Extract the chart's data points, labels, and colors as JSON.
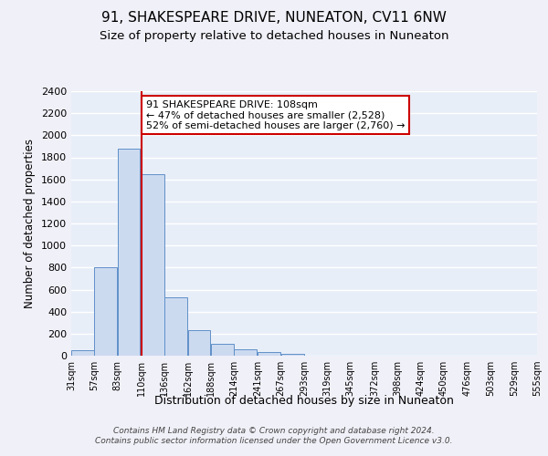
{
  "title": "91, SHAKESPEARE DRIVE, NUNEATON, CV11 6NW",
  "subtitle": "Size of property relative to detached houses in Nuneaton",
  "xlabel": "Distribution of detached houses by size in Nuneaton",
  "ylabel": "Number of detached properties",
  "bar_color": "#ccdaf0",
  "bar_edge_color": "#6090c8",
  "background_color": "#e8eef8",
  "grid_color": "#ffffff",
  "vline_x": 110,
  "vline_color": "#cc0000",
  "bins": [
    31,
    57,
    83,
    110,
    136,
    162,
    188,
    214,
    241,
    267,
    293,
    319,
    345,
    372,
    398,
    424,
    450,
    476,
    503,
    529,
    555
  ],
  "bin_labels": [
    "31sqm",
    "57sqm",
    "83sqm",
    "110sqm",
    "136sqm",
    "162sqm",
    "188sqm",
    "214sqm",
    "241sqm",
    "267sqm",
    "293sqm",
    "319sqm",
    "345sqm",
    "372sqm",
    "398sqm",
    "424sqm",
    "450sqm",
    "476sqm",
    "503sqm",
    "529sqm",
    "555sqm"
  ],
  "bar_heights": [
    50,
    800,
    1880,
    1650,
    530,
    235,
    105,
    55,
    30,
    20,
    0,
    0,
    0,
    0,
    0,
    0,
    0,
    0,
    0,
    0
  ],
  "ylim": [
    0,
    2400
  ],
  "yticks": [
    0,
    200,
    400,
    600,
    800,
    1000,
    1200,
    1400,
    1600,
    1800,
    2000,
    2200,
    2400
  ],
  "annotation_text": "91 SHAKESPEARE DRIVE: 108sqm\n← 47% of detached houses are smaller (2,528)\n52% of semi-detached houses are larger (2,760) →",
  "annotation_box_color": "#ffffff",
  "annotation_box_edge": "#cc0000",
  "footer_text": "Contains HM Land Registry data © Crown copyright and database right 2024.\nContains public sector information licensed under the Open Government Licence v3.0.",
  "title_fontsize": 11,
  "subtitle_fontsize": 9.5,
  "ylabel_fontsize": 8.5,
  "xlabel_fontsize": 9,
  "annotation_fontsize": 8,
  "footer_fontsize": 6.5
}
